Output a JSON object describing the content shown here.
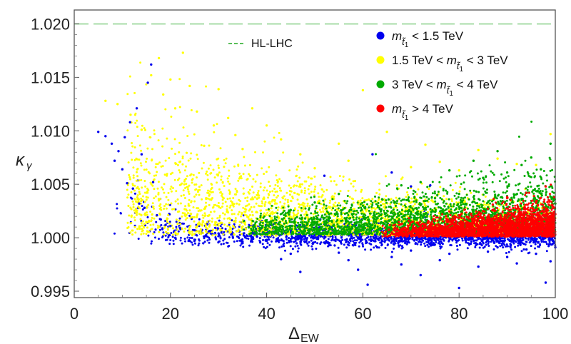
{
  "chart_data": {
    "type": "scatter",
    "title": "",
    "xlabel": "Δ",
    "xlabel_sub": "EW",
    "ylabel": "κ",
    "ylabel_sub": "γ",
    "xlim": [
      0,
      100
    ],
    "ylim": [
      0.9944,
      1.0213
    ],
    "x_ticks": [
      0,
      20,
      40,
      60,
      80,
      100
    ],
    "x_tick_labels": [
      "0",
      "20",
      "40",
      "60",
      "80",
      "100"
    ],
    "y_ticks": [
      0.995,
      1.0,
      1.005,
      1.01,
      1.015,
      1.02
    ],
    "y_tick_labels": [
      "0.995",
      "1.000",
      "1.005",
      "1.010",
      "1.015",
      "1.020"
    ],
    "reference_line": {
      "y": 1.02,
      "label": "HL-LHC",
      "color": "#a8dca8",
      "legend_color": "#22aa22"
    },
    "series": [
      {
        "name": "m_t1 < 1.5 TeV",
        "color": "#0000ee",
        "legend": [
          "m",
          "t̃",
          "1",
          "< 1.5 TeV"
        ],
        "points": [
          [
            5,
            1.0099
          ],
          [
            6.5,
            1.0095
          ],
          [
            7.8,
            1.0088
          ],
          [
            8.4,
            1.0072
          ],
          [
            9.2,
            1.0081
          ],
          [
            10,
            1.0064
          ],
          [
            10.5,
            1.0094
          ],
          [
            11,
            1.0051
          ],
          [
            11.6,
            1.0108
          ],
          [
            12.2,
            1.0046
          ],
          [
            13,
            1.0121
          ],
          [
            13.5,
            1.0032
          ],
          [
            14,
            1.0078
          ],
          [
            14.6,
            1.0028
          ],
          [
            15.3,
            1.0145
          ],
          [
            16,
            1.0162
          ],
          [
            16.4,
            1.0052
          ],
          [
            17.2,
            1.0021
          ],
          [
            18,
            1.0017
          ],
          [
            19,
            1.0012
          ],
          [
            20,
            1.0011
          ],
          [
            22,
            1.0009
          ],
          [
            25,
            1.0007
          ],
          [
            28,
            1.0006
          ],
          [
            30,
            1.0004
          ],
          [
            33,
            1.0
          ],
          [
            35,
            0.9995
          ],
          [
            38,
            1.0001
          ],
          [
            40,
            0.9997
          ],
          [
            43,
            0.998
          ],
          [
            45,
            0.9985
          ],
          [
            47,
            0.9968
          ],
          [
            50,
            1.0
          ],
          [
            53,
            0.9993
          ],
          [
            55,
            0.9986
          ],
          [
            57,
            0.9979
          ],
          [
            59,
            0.997
          ],
          [
            61,
            0.9956
          ],
          [
            63,
            0.9991
          ],
          [
            66,
            0.9982
          ],
          [
            68,
            0.9975
          ],
          [
            70,
            0.9988
          ],
          [
            72,
            0.9965
          ],
          [
            74,
            0.9994
          ],
          [
            76,
            0.9979
          ],
          [
            78,
            0.9985
          ],
          [
            80,
            0.9953
          ],
          [
            82,
            0.9998
          ],
          [
            84,
            0.9973
          ],
          [
            86,
            0.9987
          ],
          [
            88,
            0.9991
          ],
          [
            90,
            0.9982
          ],
          [
            92,
            0.9976
          ],
          [
            94,
            0.9989
          ],
          [
            96,
            0.9985
          ],
          [
            98,
            0.9958
          ],
          [
            99,
            0.9978
          ],
          [
            100,
            0.9991
          ],
          [
            52,
            1.0058
          ],
          [
            62,
            1.0078
          ],
          [
            66,
            1.0061
          ],
          [
            74,
            1.0049
          ],
          [
            70,
            1.0048
          ]
        ]
      },
      {
        "name": "1.5 TeV < m_t1 < 3 TeV",
        "color": "#ffff00",
        "legend": [
          "1.5 TeV < m",
          "t̃",
          "1",
          "< 3 TeV"
        ],
        "points": [
          [
            6.5,
            1.0128
          ],
          [
            9,
            1.0125
          ],
          [
            11.7,
            1.0115
          ],
          [
            14,
            1.0101
          ],
          [
            16,
            1.0152
          ],
          [
            17.6,
            1.0168
          ],
          [
            18.5,
            1.0134
          ],
          [
            20,
            1.0148
          ],
          [
            21,
            1.0121
          ],
          [
            22.6,
            1.0173
          ],
          [
            24,
            1.0142
          ],
          [
            25.5,
            1.0118
          ],
          [
            27,
            1.0086
          ],
          [
            29,
            1.0105
          ],
          [
            30,
            1.0139
          ],
          [
            32,
            1.0112
          ],
          [
            33.5,
            1.0096
          ],
          [
            35,
            1.0083
          ],
          [
            37,
            1.0121
          ],
          [
            40,
            1.0105
          ],
          [
            43,
            1.0092
          ],
          [
            47,
            1.0078
          ],
          [
            50,
            1.0065
          ],
          [
            55,
            1.0088
          ],
          [
            57,
            1.0072
          ],
          [
            60,
            1.0138
          ],
          [
            65,
            1.0099
          ],
          [
            70,
            1.0066
          ],
          [
            73,
            1.0087
          ],
          [
            76,
            1.0071
          ],
          [
            80,
            1.0063
          ],
          [
            84,
            1.0082
          ],
          [
            88,
            1.0074
          ],
          [
            92,
            1.0069
          ],
          [
            96,
            1.0068
          ],
          [
            99,
            1.0097
          ]
        ]
      },
      {
        "name": "3 TeV < m_t1 < 4 TeV",
        "color": "#00aa00",
        "legend": [
          "3 TeV < m",
          "t̃",
          "1",
          "< 4 TeV"
        ],
        "points": [
          [
            45,
            1.0026
          ],
          [
            48,
            1.0018
          ],
          [
            50,
            1.0033
          ],
          [
            53,
            1.0022
          ],
          [
            55,
            1.0041
          ],
          [
            58,
            1.0019
          ],
          [
            60,
            1.003
          ],
          [
            62,
            1.0012
          ],
          [
            64,
            1.0036
          ],
          [
            66,
            1.0008
          ],
          [
            68,
            1.0049
          ],
          [
            70,
            1.0024
          ],
          [
            72,
            1.0052
          ],
          [
            75,
            1.0037
          ],
          [
            78,
            1.0063
          ],
          [
            80,
            1.0041
          ],
          [
            83,
            1.0072
          ],
          [
            85,
            1.0056
          ],
          [
            88,
            1.0081
          ],
          [
            90,
            1.0061
          ],
          [
            93,
            1.0068
          ],
          [
            95,
            1.0075
          ],
          [
            97,
            1.0064
          ],
          [
            99,
            1.0088
          ],
          [
            100,
            1.0032
          ]
        ]
      },
      {
        "name": "m_t1 > 4 TeV",
        "color": "#ff0000",
        "legend": [
          "m",
          "t̃",
          "1",
          "> 4 TeV"
        ],
        "points": [
          [
            66,
            1.0004
          ],
          [
            68,
            1.0008
          ],
          [
            70,
            1.0002
          ],
          [
            72,
            1.0012
          ],
          [
            75,
            1.0006
          ],
          [
            78,
            1.0015
          ],
          [
            80,
            1.0021
          ],
          [
            82,
            1.0018
          ],
          [
            84,
            1.0009
          ],
          [
            85,
            1.0025
          ],
          [
            87,
            1.0031
          ],
          [
            89,
            1.0014
          ],
          [
            90,
            1.0038
          ],
          [
            92,
            1.0027
          ],
          [
            94,
            1.0042
          ],
          [
            96,
            1.0033
          ],
          [
            98,
            1.0048
          ],
          [
            100,
            1.0022
          ]
        ]
      }
    ]
  }
}
